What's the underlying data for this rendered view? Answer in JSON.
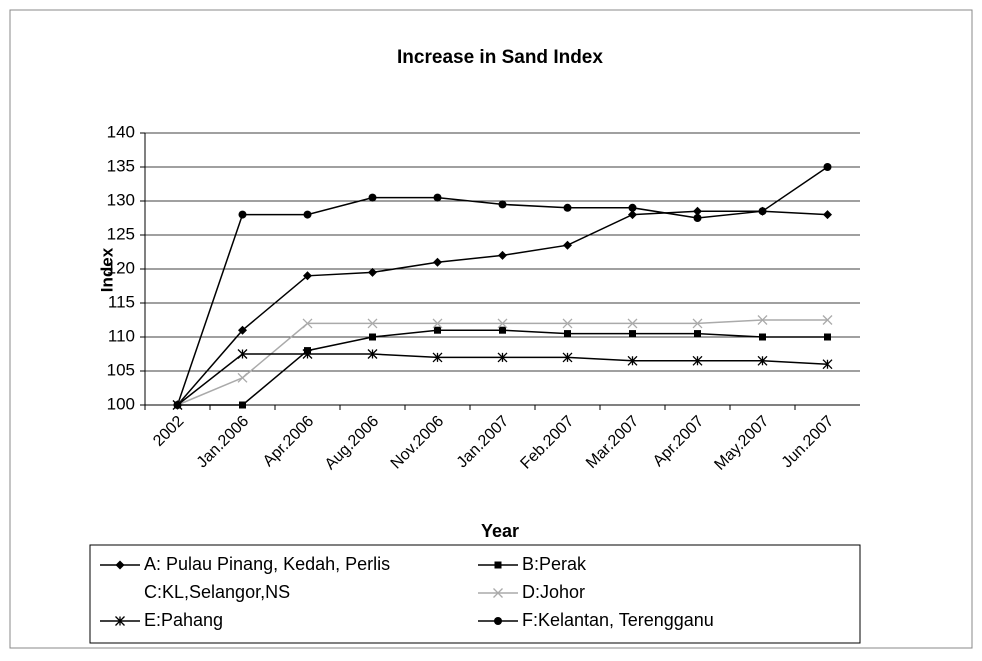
{
  "chart_data": {
    "type": "line",
    "title": "Increase in Sand Index",
    "x_label": "Year",
    "y_label": "Index",
    "categories": [
      "2002",
      "Jan.2006",
      "Apr.2006",
      "Aug.2006",
      "Nov.2006",
      "Jan.2007",
      "Feb.2007",
      "Mar.2007",
      "Apr.2007",
      "May.2007",
      "Jun.2007"
    ],
    "ylim": [
      100,
      140
    ],
    "yticks": [
      100,
      105,
      110,
      115,
      120,
      125,
      130,
      135,
      140
    ],
    "grid": true,
    "series": [
      {
        "name": "A: Pulau Pinang, Kedah, Perlis",
        "color": "#000000",
        "marker": "diamond",
        "values": [
          100,
          111,
          119,
          119.5,
          121,
          122,
          123.5,
          128,
          128.5,
          128.5,
          128
        ]
      },
      {
        "name": "B:Perak",
        "color": "#000000",
        "marker": "square",
        "values": [
          100,
          100,
          108,
          110,
          111,
          111,
          110.5,
          110.5,
          110.5,
          110,
          110
        ]
      },
      {
        "name": "C:KL,Selangor,NS",
        "color": "#000000",
        "marker": "none",
        "values": [
          null,
          null,
          null,
          null,
          null,
          null,
          null,
          null,
          null,
          null,
          null
        ]
      },
      {
        "name": "D:Johor",
        "color": "#aaaaaa",
        "marker": "x",
        "values": [
          100,
          104,
          112,
          112,
          112,
          112,
          112,
          112,
          112,
          112.5,
          112.5
        ]
      },
      {
        "name": "E:Pahang",
        "color": "#000000",
        "marker": "asterisk",
        "values": [
          100,
          107.5,
          107.5,
          107.5,
          107,
          107,
          107,
          106.5,
          106.5,
          106.5,
          106
        ]
      },
      {
        "name": "F:Kelantan, Terengganu",
        "color": "#000000",
        "marker": "circle",
        "values": [
          100,
          128,
          128,
          130.5,
          130.5,
          129.5,
          129,
          129,
          127.5,
          128.5,
          135
        ]
      }
    ]
  }
}
